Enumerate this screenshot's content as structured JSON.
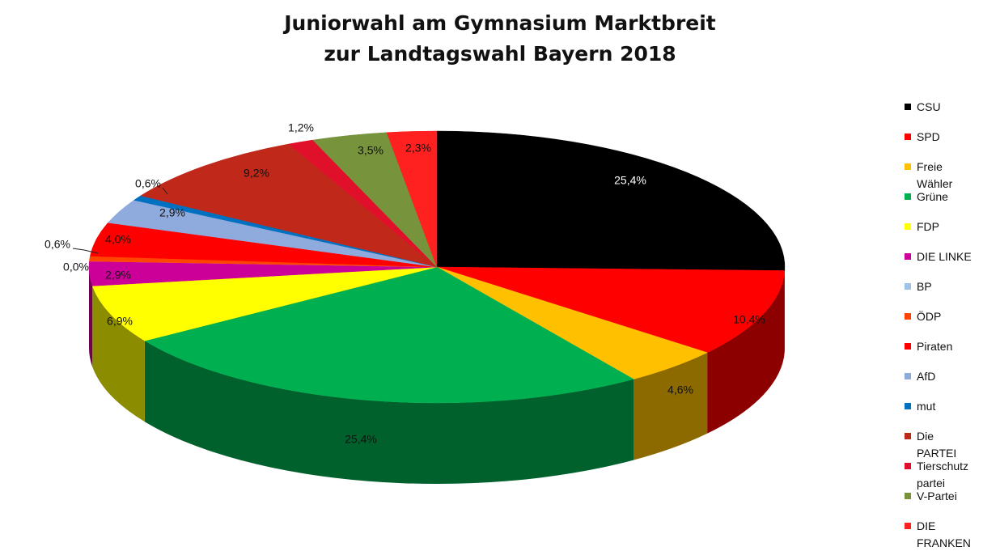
{
  "title": {
    "line1": "Juniorwahl am Gymnasium Marktbreit",
    "line2": "zur Landtagswahl Bayern 2018"
  },
  "chart_data": {
    "type": "pie",
    "title": "Juniorwahl am Gymnasium Marktbreit zur Landtagswahl Bayern 2018",
    "unit": "%",
    "legend_position": "right",
    "slices": [
      {
        "label": "CSU",
        "value": 25.4,
        "value_label": "25,4%",
        "color": "#000000"
      },
      {
        "label": "SPD",
        "value": 10.4,
        "value_label": "10,4%",
        "color": "#ff0000"
      },
      {
        "label": "Freie Wähler",
        "value": 4.6,
        "value_label": "4,6%",
        "color": "#ffc000"
      },
      {
        "label": "Grüne",
        "value": 25.4,
        "value_label": "25,4%",
        "color": "#00b050"
      },
      {
        "label": "FDP",
        "value": 6.9,
        "value_label": "6,9%",
        "color": "#ffff00"
      },
      {
        "label": "DIE LINKE",
        "value": 2.9,
        "value_label": "2,9%",
        "color": "#cc0099"
      },
      {
        "label": "BP",
        "value": 0.0,
        "value_label": "0,0%",
        "color": "#9dc3e6"
      },
      {
        "label": "ÖDP",
        "value": 0.6,
        "value_label": "0,6%",
        "color": "#ff4500"
      },
      {
        "label": "Piraten",
        "value": 4.0,
        "value_label": "4,0%",
        "color": "#ff0000"
      },
      {
        "label": "AfD",
        "value": 2.9,
        "value_label": "2,9%",
        "color": "#8faadc"
      },
      {
        "label": "mut",
        "value": 0.6,
        "value_label": "0,6%",
        "color": "#0070c0"
      },
      {
        "label": "Die PARTEI",
        "value": 9.2,
        "value_label": "9,2%",
        "color": "#c0281a"
      },
      {
        "label": "Tierschutz partei",
        "value": 1.2,
        "value_label": "1,2%",
        "color": "#e0102a"
      },
      {
        "label": "V-Partei",
        "value": 3.5,
        "value_label": "3,5%",
        "color": "#77933c"
      },
      {
        "label": "DIE FRANKEN",
        "value": 2.3,
        "value_label": "2,3%",
        "color": "#ff2020"
      }
    ]
  },
  "legend": {
    "items": [
      {
        "lines": [
          "CSU"
        ],
        "color": "#000000"
      },
      {
        "lines": [
          "SPD"
        ],
        "color": "#ff0000"
      },
      {
        "lines": [
          "Freie",
          "Wähler"
        ],
        "color": "#ffc000"
      },
      {
        "lines": [
          "Grüne"
        ],
        "color": "#00b050"
      },
      {
        "lines": [
          "FDP"
        ],
        "color": "#ffff00"
      },
      {
        "lines": [
          "DIE LINKE"
        ],
        "color": "#cc0099"
      },
      {
        "lines": [
          "BP"
        ],
        "color": "#9dc3e6"
      },
      {
        "lines": [
          "ÖDP"
        ],
        "color": "#ff4500"
      },
      {
        "lines": [
          "Piraten"
        ],
        "color": "#ff0000"
      },
      {
        "lines": [
          "AfD"
        ],
        "color": "#8faadc"
      },
      {
        "lines": [
          "mut"
        ],
        "color": "#0070c0"
      },
      {
        "lines": [
          "Die",
          "PARTEI"
        ],
        "color": "#c0281a"
      },
      {
        "lines": [
          "Tierschutz",
          "partei"
        ],
        "color": "#e0102a"
      },
      {
        "lines": [
          "V-Partei"
        ],
        "color": "#77933c"
      },
      {
        "lines": [
          "DIE",
          "FRANKEN"
        ],
        "color": "#ff2020"
      }
    ]
  }
}
